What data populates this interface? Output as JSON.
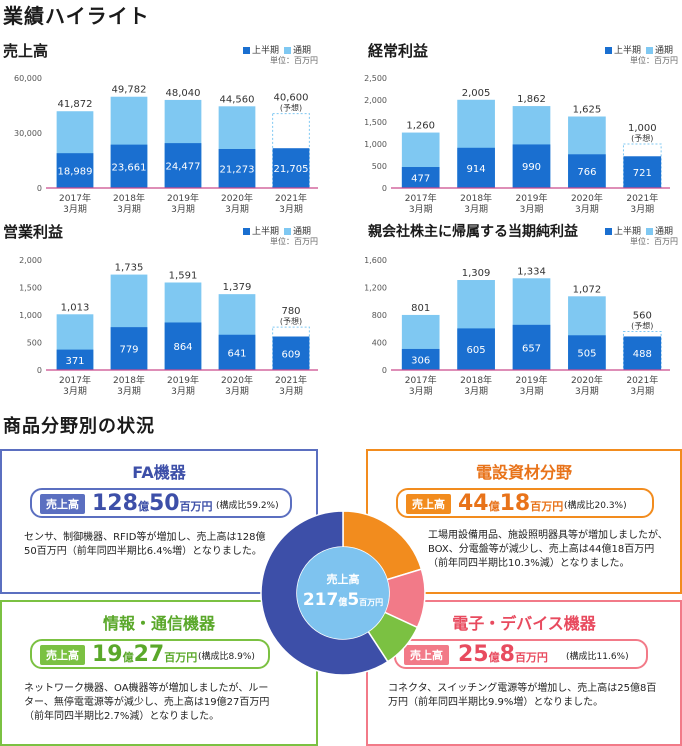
{
  "section1_title": "業績ハイライト",
  "legend": {
    "first_half": "上半期",
    "full_year": "通期",
    "unit": "単位：百万円"
  },
  "colors": {
    "first_half": "#1a6fd0",
    "full_year": "#7fc8f2",
    "baseline": "#c94b8c"
  },
  "chart_data": [
    {
      "type": "bar",
      "title": "売上高",
      "categories": [
        "2017年\n3月期",
        "2018年\n3月期",
        "2019年\n3月期",
        "2020年\n3月期",
        "2021年\n3月期"
      ],
      "series": [
        {
          "name": "上半期",
          "values": [
            18989,
            23661,
            24477,
            21273,
            21705
          ]
        },
        {
          "name": "通期",
          "values": [
            41872,
            49782,
            48040,
            44560,
            40600
          ]
        }
      ],
      "ylim": [
        0,
        60000
      ],
      "yticks": [
        "60,000",
        "30,000",
        "0"
      ],
      "forecast_index": 4,
      "forecast_label": "(予想)",
      "value_labels_full": [
        "41,872",
        "49,782",
        "48,040",
        "44,560",
        "40,600"
      ],
      "value_labels_half": [
        "18,989",
        "23,661",
        "24,477",
        "21,273",
        "21,705"
      ]
    },
    {
      "type": "bar",
      "title": "経常利益",
      "categories": [
        "2017年\n3月期",
        "2018年\n3月期",
        "2019年\n3月期",
        "2020年\n3月期",
        "2021年\n3月期"
      ],
      "series": [
        {
          "name": "上半期",
          "values": [
            477,
            914,
            990,
            766,
            721
          ]
        },
        {
          "name": "通期",
          "values": [
            1260,
            2005,
            1862,
            1625,
            1000
          ]
        }
      ],
      "ylim": [
        0,
        2500
      ],
      "yticks": [
        "2,500",
        "2,000",
        "1,500",
        "1,000",
        "500",
        "0"
      ],
      "forecast_index": 4,
      "forecast_label": "(予想)",
      "value_labels_full": [
        "1,260",
        "2,005",
        "1,862",
        "1,625",
        "1,000"
      ],
      "value_labels_half": [
        "477",
        "914",
        "990",
        "766",
        "721"
      ]
    },
    {
      "type": "bar",
      "title": "営業利益",
      "categories": [
        "2017年\n3月期",
        "2018年\n3月期",
        "2019年\n3月期",
        "2020年\n3月期",
        "2021年\n3月期"
      ],
      "series": [
        {
          "name": "上半期",
          "values": [
            371,
            779,
            864,
            641,
            609
          ]
        },
        {
          "name": "通期",
          "values": [
            1013,
            1735,
            1591,
            1379,
            780
          ]
        }
      ],
      "ylim": [
        0,
        2000
      ],
      "yticks": [
        "2,000",
        "1,500",
        "1,000",
        "500",
        "0"
      ],
      "forecast_index": 4,
      "forecast_label": "(予想)",
      "value_labels_full": [
        "1,013",
        "1,735",
        "1,591",
        "1,379",
        "780"
      ],
      "value_labels_half": [
        "371",
        "779",
        "864",
        "641",
        "609"
      ]
    },
    {
      "type": "bar",
      "title": "親会社株主に帰属する当期純利益",
      "categories": [
        "2017年\n3月期",
        "2018年\n3月期",
        "2019年\n3月期",
        "2020年\n3月期",
        "2021年\n3月期"
      ],
      "series": [
        {
          "name": "上半期",
          "values": [
            306,
            605,
            657,
            505,
            488
          ]
        },
        {
          "name": "通期",
          "values": [
            801,
            1309,
            1334,
            1072,
            560
          ]
        }
      ],
      "ylim": [
        0,
        1600
      ],
      "yticks": [
        "1,600",
        "1,200",
        "800",
        "400",
        "0"
      ],
      "forecast_index": 4,
      "forecast_label": "(予想)",
      "value_labels_full": [
        "801",
        "1,309",
        "1,334",
        "1,072",
        "560"
      ],
      "value_labels_half": [
        "306",
        "605",
        "657",
        "505",
        "488"
      ]
    }
  ],
  "section2_title": "商品分野別の状況",
  "pie": {
    "center_label": "売上高",
    "center_value": "217",
    "center_unit1": "億",
    "center_value2": "5",
    "center_unit2": "百万円",
    "segments": [
      {
        "name": "FA機器",
        "share": 59.2,
        "color": "#3d4fa8"
      },
      {
        "name": "電設資材分野",
        "share": 20.3,
        "color": "#f28c1e"
      },
      {
        "name": "電子・デバイス機器",
        "share": 11.6,
        "color": "#f27a88"
      },
      {
        "name": "情報・通信機器",
        "share": 8.9,
        "color": "#7bc142"
      }
    ]
  },
  "segments": {
    "fa": {
      "title": "FA機器",
      "tag": "売上高",
      "amount1": "128",
      "unit1": "億",
      "amount2": "50",
      "unit2": "百万円",
      "share": "(構成比59.2%)",
      "desc": "センサ、制御機器、RFID等が増加し、売上高は128億50百万円（前年同四半期比6.4%増）となりました。",
      "color": "#3d4fa8"
    },
    "den": {
      "title": "電設資材分野",
      "tag": "売上高",
      "amount1": "44",
      "unit1": "億",
      "amount2": "18",
      "unit2": "百万円",
      "share": "(構成比20.3%)",
      "desc": "工場用設備用品、施設照明器具等が増加しましたが、BOX、分電盤等が減少し、売上高は44億18百万円（前年同四半期比10.3%減）となりました。",
      "color": "#f28c1e"
    },
    "info": {
      "title": "情報・通信機器",
      "tag": "売上高",
      "amount1": "19",
      "unit1": "億",
      "amount2": "27",
      "unit2": "百万円",
      "share": "(構成比8.9%)",
      "desc": "ネットワーク機器、OA機器等が増加しましたが、ルーター、無停電電源等が減少し、売上高は19億27百万円（前年同四半期比2.7%減）となりました。",
      "color": "#7bc142"
    },
    "elec": {
      "title": "電子・デバイス機器",
      "tag": "売上高",
      "amount1": "25",
      "unit1": "億",
      "amount2": "8",
      "unit2": "百万円",
      "share": "(構成比11.6%)",
      "desc": "コネクタ、スイッチング電源等が増加し、売上高は25億8百万円（前年同四半期比9.9%増）となりました。",
      "color": "#f27a88"
    }
  }
}
